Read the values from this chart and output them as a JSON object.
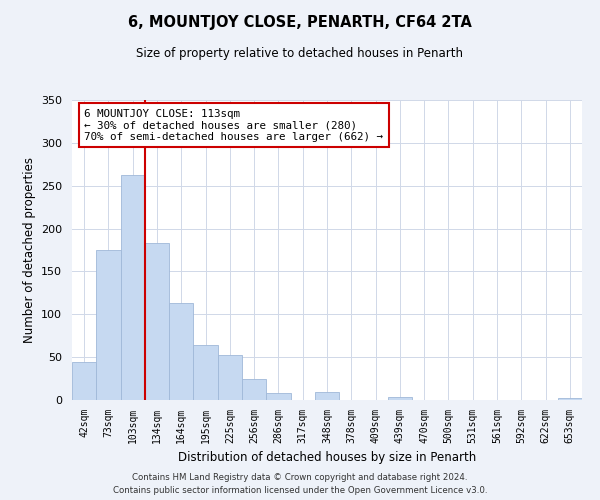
{
  "title": "6, MOUNTJOY CLOSE, PENARTH, CF64 2TA",
  "subtitle": "Size of property relative to detached houses in Penarth",
  "xlabel": "Distribution of detached houses by size in Penarth",
  "ylabel": "Number of detached properties",
  "bin_labels": [
    "42sqm",
    "73sqm",
    "103sqm",
    "134sqm",
    "164sqm",
    "195sqm",
    "225sqm",
    "256sqm",
    "286sqm",
    "317sqm",
    "348sqm",
    "378sqm",
    "409sqm",
    "439sqm",
    "470sqm",
    "500sqm",
    "531sqm",
    "561sqm",
    "592sqm",
    "622sqm",
    "653sqm"
  ],
  "bar_values": [
    44,
    175,
    262,
    183,
    113,
    64,
    52,
    25,
    8,
    0,
    9,
    0,
    0,
    3,
    0,
    0,
    0,
    0,
    0,
    0,
    2
  ],
  "bar_color": "#c6d9f1",
  "bar_edge_color": "#a0b8d8",
  "grid_color": "#d0d8e8",
  "vline_color": "#cc0000",
  "vline_x_index": 2,
  "annotation_text": "6 MOUNTJOY CLOSE: 113sqm\n← 30% of detached houses are smaller (280)\n70% of semi-detached houses are larger (662) →",
  "annotation_box_color": "#ffffff",
  "annotation_box_edgecolor": "#cc0000",
  "ylim": [
    0,
    350
  ],
  "yticks": [
    0,
    50,
    100,
    150,
    200,
    250,
    300,
    350
  ],
  "footer_line1": "Contains HM Land Registry data © Crown copyright and database right 2024.",
  "footer_line2": "Contains public sector information licensed under the Open Government Licence v3.0.",
  "bg_color": "#eef2f9",
  "plot_bg_color": "#ffffff"
}
